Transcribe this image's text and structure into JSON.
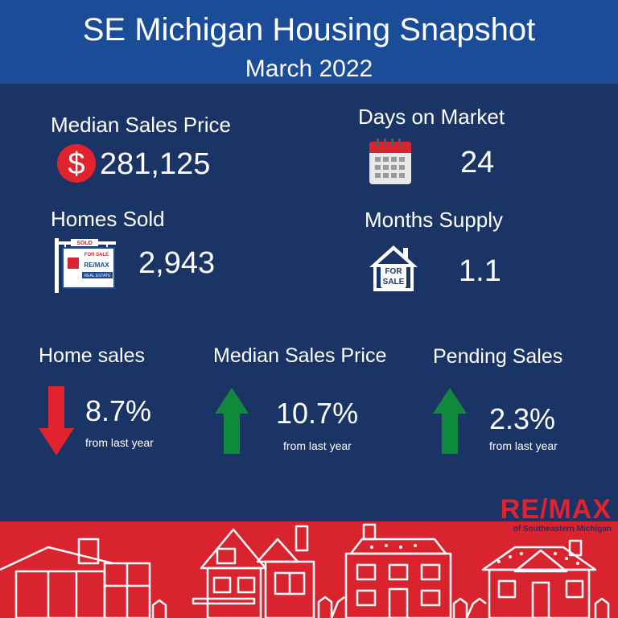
{
  "header": {
    "title": "SE Michigan Housing Snapshot",
    "subtitle": "March 2022"
  },
  "stats": {
    "median_sales_price": {
      "label": "Median Sales Price",
      "value": "281,125",
      "currency_symbol": "$"
    },
    "days_on_market": {
      "label": "Days on Market",
      "value": "24"
    },
    "homes_sold": {
      "label": "Homes Sold",
      "value": "2,943"
    },
    "months_supply": {
      "label": "Months Supply",
      "value": "1.1"
    }
  },
  "changes": [
    {
      "label": "Home sales",
      "value": "8.7%",
      "direction": "down",
      "sub": "from last year"
    },
    {
      "label": "Median Sales Price",
      "value": "10.7%",
      "direction": "up",
      "sub": "from last year"
    },
    {
      "label": "Pending Sales",
      "value": "2.3%",
      "direction": "up",
      "sub": "from last year"
    }
  ],
  "icons": {
    "price": "dollar-circle-icon",
    "days": "calendar-icon",
    "sold": "sold-sign-icon",
    "supply": "for-sale-house-icon"
  },
  "sign_text": {
    "sold": "SOLD",
    "for_sale": "FOR SALE",
    "brand_small": "RE/MAX",
    "real_estate": "REAL ESTATE",
    "house_line1": "FOR",
    "house_line2": "SALE"
  },
  "brand": {
    "name": "RE/MAX",
    "tagline": "of Southeastern Michigan"
  },
  "colors": {
    "background": "#1b3466",
    "header": "#1a4c97",
    "footer": "#d9232f",
    "down_arrow": "#e2232f",
    "up_arrow": "#0f8a3c"
  }
}
